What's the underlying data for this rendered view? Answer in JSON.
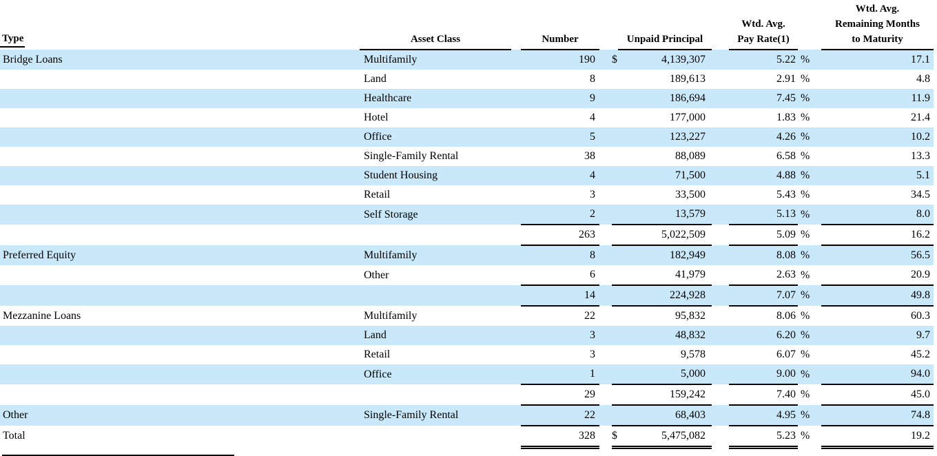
{
  "colors": {
    "row_highlight": "#c9e8f9",
    "rule": "#000000",
    "text": "#000000"
  },
  "table": {
    "columns": {
      "type": "Type",
      "asset_class": "Asset Class",
      "number": "Number",
      "unpaid_principal": "Unpaid Principal",
      "pay_rate_line1": "Wtd. Avg.",
      "pay_rate_line2": "Pay Rate(1)",
      "maturity_line1": "Wtd. Avg.",
      "maturity_line2": "Remaining Months",
      "maturity_line3": "to Maturity"
    },
    "rows": [
      {
        "kind": "data",
        "type": "Bridge Loans",
        "asset_class": "Multifamily",
        "number": "190",
        "dollar": "$",
        "unpaid_principal": "4,139,307",
        "pay_rate": "5.22",
        "percent": "%",
        "months": "17.1",
        "shaded": true,
        "rule_below": false,
        "double_rule_below": false
      },
      {
        "kind": "data",
        "type": "",
        "asset_class": "Land",
        "number": "8",
        "dollar": "",
        "unpaid_principal": "189,613",
        "pay_rate": "2.91",
        "percent": "%",
        "months": "4.8",
        "shaded": false,
        "rule_below": false,
        "double_rule_below": false
      },
      {
        "kind": "data",
        "type": "",
        "asset_class": "Healthcare",
        "number": "9",
        "dollar": "",
        "unpaid_principal": "186,694",
        "pay_rate": "7.45",
        "percent": "%",
        "months": "11.9",
        "shaded": true,
        "rule_below": false,
        "double_rule_below": false
      },
      {
        "kind": "data",
        "type": "",
        "asset_class": "Hotel",
        "number": "4",
        "dollar": "",
        "unpaid_principal": "177,000",
        "pay_rate": "1.83",
        "percent": "%",
        "months": "21.4",
        "shaded": false,
        "rule_below": false,
        "double_rule_below": false
      },
      {
        "kind": "data",
        "type": "",
        "asset_class": "Office",
        "number": "5",
        "dollar": "",
        "unpaid_principal": "123,227",
        "pay_rate": "4.26",
        "percent": "%",
        "months": "10.2",
        "shaded": true,
        "rule_below": false,
        "double_rule_below": false
      },
      {
        "kind": "data",
        "type": "",
        "asset_class": "Single-Family Rental",
        "number": "38",
        "dollar": "",
        "unpaid_principal": "88,089",
        "pay_rate": "6.58",
        "percent": "%",
        "months": "13.3",
        "shaded": false,
        "rule_below": false,
        "double_rule_below": false
      },
      {
        "kind": "data",
        "type": "",
        "asset_class": "Student Housing",
        "number": "4",
        "dollar": "",
        "unpaid_principal": "71,500",
        "pay_rate": "4.88",
        "percent": "%",
        "months": "5.1",
        "shaded": true,
        "rule_below": false,
        "double_rule_below": false
      },
      {
        "kind": "data",
        "type": "",
        "asset_class": "Retail",
        "number": "3",
        "dollar": "",
        "unpaid_principal": "33,500",
        "pay_rate": "5.43",
        "percent": "%",
        "months": "34.5",
        "shaded": false,
        "rule_below": false,
        "double_rule_below": false
      },
      {
        "kind": "data",
        "type": "",
        "asset_class": "Self Storage",
        "number": "2",
        "dollar": "",
        "unpaid_principal": "13,579",
        "pay_rate": "5.13",
        "percent": "%",
        "months": "8.0",
        "shaded": true,
        "rule_below": true,
        "double_rule_below": false
      },
      {
        "kind": "subtotal",
        "type": "",
        "asset_class": "",
        "number": "263",
        "dollar": "",
        "unpaid_principal": "5,022,509",
        "pay_rate": "5.09",
        "percent": "%",
        "months": "16.2",
        "shaded": false,
        "rule_below": true,
        "double_rule_below": false
      },
      {
        "kind": "data",
        "type": "Preferred Equity",
        "asset_class": "Multifamily",
        "number": "8",
        "dollar": "",
        "unpaid_principal": "182,949",
        "pay_rate": "8.08",
        "percent": "%",
        "months": "56.5",
        "shaded": true,
        "rule_below": false,
        "double_rule_below": false
      },
      {
        "kind": "data",
        "type": "",
        "asset_class": "Other",
        "number": "6",
        "dollar": "",
        "unpaid_principal": "41,979",
        "pay_rate": "2.63",
        "percent": "%",
        "months": "20.9",
        "shaded": false,
        "rule_below": true,
        "double_rule_below": false
      },
      {
        "kind": "subtotal",
        "type": "",
        "asset_class": "",
        "number": "14",
        "dollar": "",
        "unpaid_principal": "224,928",
        "pay_rate": "7.07",
        "percent": "%",
        "months": "49.8",
        "shaded": true,
        "rule_below": true,
        "double_rule_below": false
      },
      {
        "kind": "data",
        "type": "Mezzanine Loans",
        "asset_class": "Multifamily",
        "number": "22",
        "dollar": "",
        "unpaid_principal": "95,832",
        "pay_rate": "8.06",
        "percent": "%",
        "months": "60.3",
        "shaded": false,
        "rule_below": false,
        "double_rule_below": false
      },
      {
        "kind": "data",
        "type": "",
        "asset_class": "Land",
        "number": "3",
        "dollar": "",
        "unpaid_principal": "48,832",
        "pay_rate": "6.20",
        "percent": "%",
        "months": "9.7",
        "shaded": true,
        "rule_below": false,
        "double_rule_below": false
      },
      {
        "kind": "data",
        "type": "",
        "asset_class": "Retail",
        "number": "3",
        "dollar": "",
        "unpaid_principal": "9,578",
        "pay_rate": "6.07",
        "percent": "%",
        "months": "45.2",
        "shaded": false,
        "rule_below": false,
        "double_rule_below": false
      },
      {
        "kind": "data",
        "type": "",
        "asset_class": "Office",
        "number": "1",
        "dollar": "",
        "unpaid_principal": "5,000",
        "pay_rate": "9.00",
        "percent": "%",
        "months": "94.0",
        "shaded": true,
        "rule_below": true,
        "double_rule_below": false
      },
      {
        "kind": "subtotal",
        "type": "",
        "asset_class": "",
        "number": "29",
        "dollar": "",
        "unpaid_principal": "159,242",
        "pay_rate": "7.40",
        "percent": "%",
        "months": "45.0",
        "shaded": false,
        "rule_below": true,
        "double_rule_below": false
      },
      {
        "kind": "data",
        "type": "Other",
        "asset_class": "Single-Family Rental",
        "number": "22",
        "dollar": "",
        "unpaid_principal": "68,403",
        "pay_rate": "4.95",
        "percent": "%",
        "months": "74.8",
        "shaded": true,
        "rule_below": true,
        "double_rule_below": false
      },
      {
        "kind": "total",
        "type": "Total",
        "asset_class": "",
        "number": "328",
        "dollar": "$",
        "unpaid_principal": "5,475,082",
        "pay_rate": "5.23",
        "percent": "%",
        "months": "19.2",
        "shaded": false,
        "rule_below": false,
        "double_rule_below": true
      }
    ]
  }
}
